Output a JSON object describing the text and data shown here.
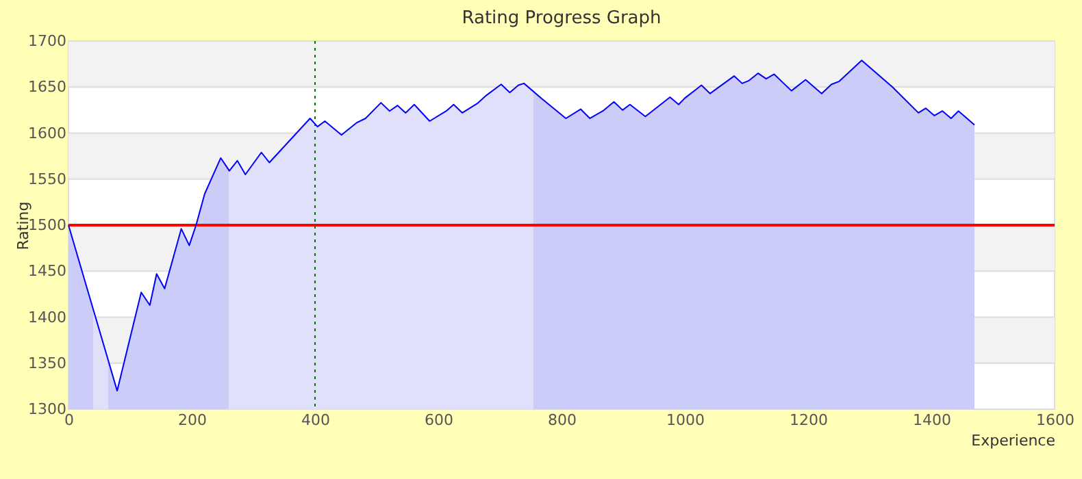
{
  "chart_data": {
    "type": "area",
    "title": "Rating Progress Graph",
    "xlabel": "Experience",
    "ylabel": "Rating",
    "xlim": [
      0,
      1600
    ],
    "xticks": [
      0,
      200,
      400,
      600,
      800,
      1000,
      1200,
      1400,
      1600
    ],
    "ylim": [
      1300,
      1700
    ],
    "yticks": [
      1300,
      1350,
      1400,
      1450,
      1500,
      1550,
      1600,
      1650,
      1700
    ],
    "grid": "y",
    "bands": [
      {
        "axis": "y",
        "from": 1350,
        "to": 1400,
        "color": "#f2f2f2"
      },
      {
        "axis": "y",
        "from": 1450,
        "to": 1500,
        "color": "#f2f2f2"
      },
      {
        "axis": "y",
        "from": 1550,
        "to": 1600,
        "color": "#f2f2f2"
      },
      {
        "axis": "y",
        "from": 1650,
        "to": 1700,
        "color": "#f2f2f2"
      }
    ],
    "ref_lines": [
      {
        "axis": "y",
        "value": 1500,
        "color": "#ff0000",
        "line_style": "solid"
      },
      {
        "axis": "x",
        "value": 400,
        "color": "#007700",
        "line_style": "dotted"
      }
    ],
    "series": [
      {
        "color": "#ccccf8",
        "x": [
          0,
          40
        ],
        "values": [
          1500,
          1409
        ]
      },
      {
        "color": "#e0e0fa",
        "x": [
          40,
          64
        ],
        "values": [
          1409,
          1354
        ]
      },
      {
        "color": "#ccccf8",
        "x": [
          64,
          79,
          118,
          132,
          143,
          156,
          183,
          196,
          207,
          221,
          247,
          260
        ],
        "values": [
          1354,
          1320,
          1427,
          1413,
          1447,
          1431,
          1496,
          1478,
          1500,
          1534,
          1573,
          1561
        ]
      },
      {
        "color": "#e0e0fa",
        "x": [
          260,
          261,
          274,
          287,
          313,
          326,
          392,
          404,
          416,
          443,
          467,
          482,
          507,
          521,
          534,
          547,
          561,
          586,
          613,
          625,
          639,
          663,
          678,
          702,
          716,
          730,
          739,
          754
        ],
        "values": [
          1561,
          1559,
          1570,
          1555,
          1579,
          1568,
          1616,
          1607,
          1613,
          1598,
          1611,
          1616,
          1633,
          1624,
          1630,
          1622,
          1631,
          1613,
          1624,
          1631,
          1622,
          1632,
          1641,
          1653,
          1644,
          1652,
          1654,
          1647
        ]
      },
      {
        "color": "#ccccf8",
        "x": [
          754,
          767,
          807,
          831,
          846,
          867,
          885,
          899,
          911,
          936,
          976,
          990,
          1000,
          1027,
          1041,
          1080,
          1093,
          1104,
          1119,
          1132,
          1145,
          1173,
          1196,
          1222,
          1238,
          1250,
          1287,
          1337,
          1379,
          1391,
          1405,
          1418,
          1432,
          1444,
          1470
        ],
        "values": [
          1647,
          1638,
          1616,
          1626,
          1616,
          1624,
          1634,
          1625,
          1631,
          1618,
          1639,
          1631,
          1638,
          1652,
          1643,
          1662,
          1654,
          1657,
          1665,
          1659,
          1664,
          1646,
          1658,
          1643,
          1653,
          1656,
          1679,
          1650,
          1622,
          1627,
          1619,
          1624,
          1616,
          1624,
          1609
        ]
      },
      {
        "type": "line",
        "color": "#0000ff",
        "x": [
          0,
          79,
          118,
          132,
          143,
          156,
          183,
          196,
          207,
          221,
          247,
          261,
          274,
          287,
          313,
          326,
          392,
          404,
          416,
          443,
          467,
          482,
          507,
          521,
          534,
          547,
          561,
          586,
          613,
          625,
          639,
          663,
          678,
          702,
          716,
          730,
          739,
          767,
          807,
          831,
          846,
          867,
          885,
          899,
          911,
          936,
          976,
          990,
          1000,
          1027,
          1041,
          1080,
          1093,
          1104,
          1119,
          1132,
          1145,
          1173,
          1196,
          1222,
          1238,
          1250,
          1287,
          1337,
          1379,
          1391,
          1405,
          1418,
          1432,
          1444,
          1470
        ],
        "values": [
          1500,
          1320,
          1427,
          1413,
          1447,
          1431,
          1496,
          1478,
          1500,
          1534,
          1573,
          1559,
          1570,
          1555,
          1579,
          1568,
          1616,
          1607,
          1613,
          1598,
          1611,
          1616,
          1633,
          1624,
          1630,
          1622,
          1631,
          1613,
          1624,
          1631,
          1622,
          1632,
          1641,
          1653,
          1644,
          1652,
          1654,
          1638,
          1616,
          1626,
          1616,
          1624,
          1634,
          1625,
          1631,
          1618,
          1639,
          1631,
          1638,
          1652,
          1643,
          1662,
          1654,
          1657,
          1665,
          1659,
          1664,
          1646,
          1658,
          1643,
          1653,
          1656,
          1679,
          1650,
          1622,
          1627,
          1619,
          1624,
          1616,
          1624,
          1609
        ]
      }
    ]
  }
}
